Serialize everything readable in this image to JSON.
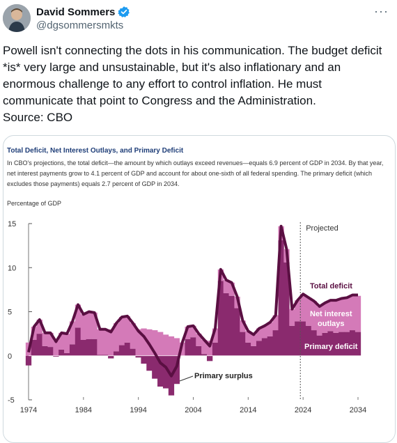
{
  "author": {
    "name": "David Sommers",
    "handle": "@dgsommersmkts"
  },
  "icons": {
    "verified": "verified-badge-icon",
    "more": "more-options-icon"
  },
  "tweet": {
    "text": "Powell isn't connecting the dots in his communication. The budget deficit *is* very large and unsustainable, but it's also inflationary and an enormous challenge to any effort to control inflation. He must communicate that point to Congress and the Administration.\nSource: CBO"
  },
  "colors": {
    "total_line": "#5a0f42",
    "primary": "#8a2a6e",
    "net_interest": "#d47ab8",
    "verified": "#1d9bf0",
    "chart_title": "#1f3e78"
  },
  "chart_data": {
    "type": "area",
    "title": "Total Deficit, Net Interest Outlays, and Primary Deficit",
    "description": "In CBO's projections, the total deficit—the amount by which outlays exceed revenues—equals 6.9 percent of GDP in 2034. By that year, net interest payments grow to 4.1 percent of GDP and account for about one-sixth of all federal spending. The primary deficit (which excludes those payments) equals 2.7 percent of GDP in 2034.",
    "ylabel": "Percentage of GDP",
    "ylim": [
      -5,
      15
    ],
    "yticks": [
      "15",
      "10",
      "5",
      "0",
      "-5"
    ],
    "xticks": [
      "1974",
      "1984",
      "1994",
      "2004",
      "2014",
      "2024",
      "2034"
    ],
    "projected_label": "Projected",
    "projected_start": 2024,
    "annotations": {
      "total": "Total deficit",
      "net_interest_1": "Net interest",
      "net_interest_2": "outlays",
      "primary": "Primary deficit",
      "surplus": "Primary surplus"
    },
    "years": [
      1974,
      1975,
      1976,
      1977,
      1978,
      1979,
      1980,
      1981,
      1982,
      1983,
      1984,
      1985,
      1986,
      1987,
      1988,
      1989,
      1990,
      1991,
      1992,
      1993,
      1994,
      1995,
      1996,
      1997,
      1998,
      1999,
      2000,
      2001,
      2002,
      2003,
      2004,
      2005,
      2006,
      2007,
      2008,
      2009,
      2010,
      2011,
      2012,
      2013,
      2014,
      2015,
      2016,
      2017,
      2018,
      2019,
      2020,
      2021,
      2022,
      2023,
      2024,
      2025,
      2026,
      2027,
      2028,
      2029,
      2030,
      2031,
      2032,
      2033,
      2034
    ],
    "series": [
      {
        "name": "Total deficit",
        "values": [
          0.4,
          3.3,
          4.1,
          2.6,
          2.6,
          1.6,
          2.6,
          2.5,
          3.9,
          5.8,
          4.7,
          5.0,
          4.9,
          3.0,
          3.0,
          2.7,
          3.7,
          4.4,
          4.5,
          3.7,
          2.8,
          2.2,
          1.3,
          0.3,
          -0.8,
          -1.3,
          -2.3,
          -1.2,
          1.5,
          3.3,
          3.4,
          2.5,
          1.8,
          1.1,
          3.1,
          9.8,
          8.6,
          8.3,
          6.7,
          4.0,
          2.8,
          2.4,
          3.1,
          3.4,
          3.8,
          4.6,
          14.7,
          12.1,
          5.3,
          6.3,
          7.0,
          6.6,
          6.2,
          5.6,
          6.0,
          6.3,
          6.3,
          6.5,
          6.6,
          6.9,
          6.9
        ]
      },
      {
        "name": "Net interest outlays",
        "values": [
          1.5,
          1.5,
          1.6,
          1.5,
          1.6,
          1.7,
          1.9,
          2.2,
          2.6,
          2.6,
          2.9,
          3.1,
          3.0,
          2.9,
          2.9,
          3.0,
          3.2,
          3.2,
          3.0,
          2.9,
          3.0,
          3.1,
          3.0,
          2.9,
          2.7,
          2.4,
          2.2,
          2.0,
          1.5,
          1.4,
          1.3,
          1.4,
          1.6,
          1.7,
          1.6,
          1.3,
          1.5,
          1.5,
          1.3,
          1.3,
          1.3,
          1.3,
          1.4,
          1.4,
          1.6,
          1.7,
          1.6,
          1.5,
          1.9,
          2.4,
          3.1,
          3.2,
          3.3,
          3.3,
          3.4,
          3.5,
          3.7,
          3.8,
          3.9,
          4.0,
          4.1
        ]
      },
      {
        "name": "Primary deficit",
        "values": [
          -1.1,
          1.8,
          2.5,
          1.1,
          1.0,
          -0.1,
          0.7,
          0.3,
          1.3,
          3.2,
          1.8,
          1.9,
          1.9,
          0.1,
          0.1,
          -0.3,
          0.5,
          1.2,
          1.5,
          0.8,
          -0.2,
          -0.9,
          -1.7,
          -2.6,
          -3.5,
          -3.7,
          -4.5,
          -3.2,
          0.0,
          1.9,
          2.1,
          1.1,
          0.2,
          -0.6,
          1.5,
          8.5,
          7.1,
          6.8,
          5.4,
          2.7,
          1.5,
          1.1,
          1.7,
          2.0,
          2.2,
          2.9,
          13.1,
          10.6,
          3.4,
          3.9,
          3.9,
          3.4,
          2.9,
          2.3,
          2.6,
          2.8,
          2.6,
          2.7,
          2.7,
          2.9,
          2.7
        ]
      }
    ]
  }
}
